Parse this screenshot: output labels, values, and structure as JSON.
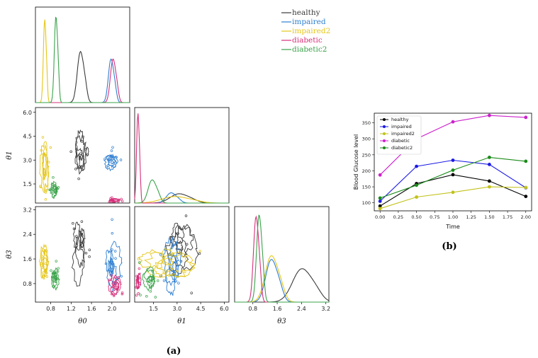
{
  "colors": {
    "healthy": "#3a3a3a",
    "impaired": "#2f7fd0",
    "impaired2": "#e6c619",
    "diabetic": "#d6307a",
    "diabetic2": "#3aa34a",
    "plot_b_healthy": "#000000",
    "plot_b_impaired": "#1a1ae6",
    "plot_b_impaired2": "#c2c21a",
    "plot_b_diabetic": "#cc22cc",
    "plot_b_diabetic2": "#1a8a1a"
  },
  "chart_data": [
    {
      "type": "scatter",
      "title": "",
      "panel_label": "(a)",
      "description_kind": "corner plot of posterior samples",
      "parameters": [
        "θ0",
        "θ1",
        "θ3"
      ],
      "legend": [
        "healthy",
        "impaired",
        "impaired2",
        "diabetic",
        "diabetic2"
      ],
      "axes": {
        "theta0": {
          "xlabel": "θ0",
          "range": [
            0.5,
            2.35
          ],
          "ticks": [
            "0.8",
            "1.2",
            "1.6",
            "2.0"
          ],
          "tick_values": [
            0.8,
            1.2,
            1.6,
            2.0
          ]
        },
        "theta1": {
          "xlabel": "θ1",
          "ylabel": "θ1",
          "range": [
            0.3,
            6.3
          ],
          "ticks": [
            "1.5",
            "3.0",
            "4.5",
            "6.0"
          ],
          "tick_values": [
            1.5,
            3.0,
            4.5,
            6.0
          ]
        },
        "theta3": {
          "xlabel": "θ3",
          "ylabel": "θ3",
          "range": [
            0.2,
            3.3
          ],
          "ticks": [
            "0.8",
            "1.6",
            "2.4",
            "3.2"
          ],
          "tick_values": [
            0.8,
            1.6,
            2.4,
            3.2
          ]
        }
      },
      "marginal_modes": {
        "theta0": {
          "healthy": 1.38,
          "impaired": 1.98,
          "impaired2": 0.68,
          "diabetic": 2.02,
          "diabetic2": 0.9
        },
        "theta1": {
          "healthy": 3.1,
          "impaired": 2.6,
          "impaired2": 2.8,
          "diabetic": 0.5,
          "diabetic2": 1.4
        },
        "theta3": {
          "healthy": 2.4,
          "impaired": 1.4,
          "impaired2": 1.4,
          "diabetic": 0.9,
          "diabetic2": 1.0
        }
      },
      "cluster_centers": {
        "theta1_vs_theta0": {
          "healthy": [
            1.38,
            3.4
          ],
          "impaired": [
            2.0,
            2.9
          ],
          "impaired2": [
            0.68,
            2.6
          ],
          "diabetic": [
            2.05,
            0.45
          ],
          "diabetic2": [
            0.88,
            1.2
          ]
        },
        "theta3_vs_theta0": {
          "healthy": [
            1.38,
            2.2
          ],
          "impaired": [
            2.0,
            1.5
          ],
          "impaired2": [
            0.68,
            1.4
          ],
          "diabetic": [
            2.05,
            0.75
          ],
          "diabetic2": [
            0.88,
            0.95
          ]
        },
        "theta3_vs_theta1": {
          "healthy": [
            3.1,
            2.1
          ],
          "impaired": [
            2.6,
            1.4
          ],
          "impaired2": [
            2.4,
            1.5
          ],
          "diabetic": [
            0.5,
            0.9
          ],
          "diabetic2": [
            1.3,
            0.9
          ]
        }
      }
    },
    {
      "type": "line",
      "panel_label": "(b)",
      "title": "",
      "xlabel": "Time",
      "ylabel": "Blood Glucose level",
      "x": [
        0.0,
        0.5,
        1.0,
        1.5,
        2.0
      ],
      "xticks": [
        "0.00",
        "0.25",
        "0.50",
        "0.75",
        "1.00",
        "1.25",
        "1.50",
        "1.75",
        "2.00"
      ],
      "xlim": [
        -0.08,
        2.08
      ],
      "yticks": [
        "100",
        "150",
        "200",
        "250",
        "300",
        "350"
      ],
      "ylim": [
        75,
        380
      ],
      "series": [
        {
          "name": "healthy",
          "values": [
            90,
            160,
            188,
            168,
            120
          ]
        },
        {
          "name": "impaired",
          "values": [
            105,
            214,
            233,
            220,
            147
          ]
        },
        {
          "name": "impaired2",
          "values": [
            82,
            118,
            133,
            150,
            148
          ]
        },
        {
          "name": "diabetic",
          "values": [
            187,
            300,
            353,
            373,
            367
          ]
        },
        {
          "name": "diabetic2",
          "values": [
            115,
            155,
            202,
            242,
            230
          ]
        }
      ],
      "legend_position": "top-left"
    }
  ]
}
